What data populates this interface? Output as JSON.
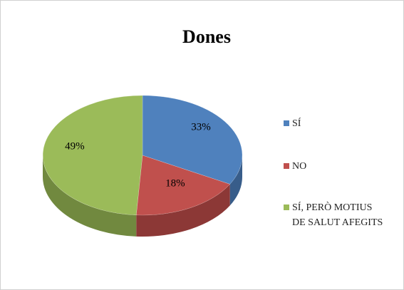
{
  "chart_data": {
    "type": "pie",
    "title": "Dones",
    "categories": [
      "SÍ",
      "NO",
      "SÍ, PERÒ MOTIUS DE SALUT AFEGITS"
    ],
    "values": [
      33,
      18,
      49
    ],
    "value_labels": [
      "33%",
      "18%",
      "49%"
    ],
    "colors": [
      "#4f81bd",
      "#c0504d",
      "#9bbb59"
    ],
    "side_colors": [
      "#385d8a",
      "#8c3836",
      "#71893f"
    ],
    "legend": "right"
  }
}
